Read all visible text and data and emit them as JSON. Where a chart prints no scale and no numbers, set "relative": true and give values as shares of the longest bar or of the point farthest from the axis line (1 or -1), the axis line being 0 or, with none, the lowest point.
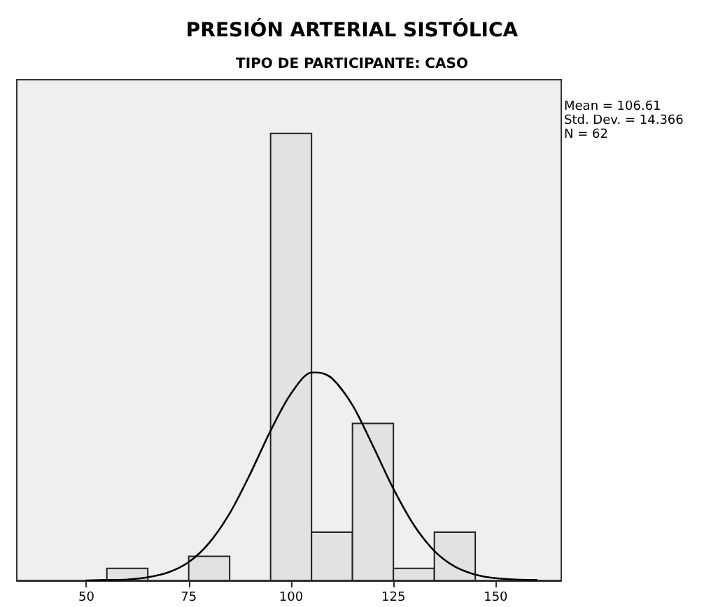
{
  "chart_data": {
    "type": "histogram",
    "title": "PRESIÓN ARTERIAL SISTÓLICA",
    "subtitle": "TIPO DE PARTICIPANTE: CASO",
    "relative": true,
    "bins": [
      55,
      65,
      75,
      85,
      95,
      105,
      115,
      125,
      135,
      145
    ],
    "values": [
      0.027,
      0,
      0.054,
      0,
      1,
      0.108,
      0.351,
      0.027,
      0.108
    ],
    "color": "#e2e2e2",
    "series": [
      {
        "type": "line",
        "color": "#000000",
        "x": [
          50,
          55,
          60,
          65,
          70,
          75,
          80,
          85,
          90,
          95,
          100,
          105,
          106.61,
          110,
          115,
          120,
          125,
          130,
          135,
          140,
          145,
          150,
          155,
          160
        ],
        "values": [
          0,
          0.001,
          0.002,
          0.007,
          0.018,
          0.041,
          0.084,
          0.15,
          0.238,
          0.335,
          0.418,
          0.465,
          0.465,
          0.452,
          0.392,
          0.301,
          0.205,
          0.124,
          0.066,
          0.031,
          0.013,
          0.005,
          0.002,
          0.001
        ]
      }
    ],
    "xlim": [
      33,
      166
    ],
    "xticks": [
      50,
      75,
      100,
      125,
      150
    ],
    "marker": "none",
    "line_style": "solid",
    "grid": false,
    "annotations": [
      "Mean = 106.61",
      "Std. Dev. = 14.366",
      "N = 62"
    ]
  }
}
